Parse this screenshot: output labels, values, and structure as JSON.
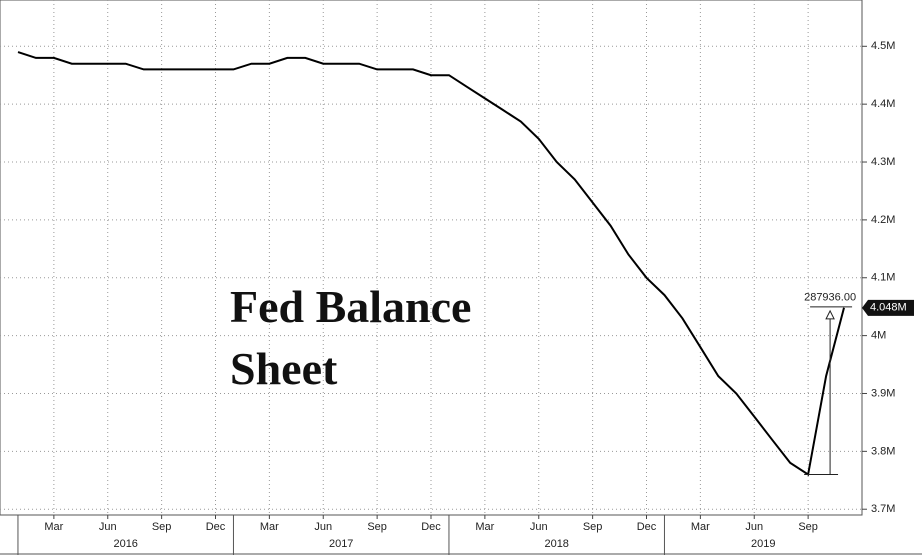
{
  "chart_data": {
    "type": "line",
    "title": "Fed Balance Sheet",
    "x": [
      "2016-01",
      "2016-02",
      "2016-03",
      "2016-04",
      "2016-05",
      "2016-06",
      "2016-07",
      "2016-08",
      "2016-09",
      "2016-10",
      "2016-11",
      "2016-12",
      "2017-01",
      "2017-02",
      "2017-03",
      "2017-04",
      "2017-05",
      "2017-06",
      "2017-07",
      "2017-08",
      "2017-09",
      "2017-10",
      "2017-11",
      "2017-12",
      "2018-01",
      "2018-02",
      "2018-03",
      "2018-04",
      "2018-05",
      "2018-06",
      "2018-07",
      "2018-08",
      "2018-09",
      "2018-10",
      "2018-11",
      "2018-12",
      "2019-01",
      "2019-02",
      "2019-03",
      "2019-04",
      "2019-05",
      "2019-06",
      "2019-07",
      "2019-08",
      "2019-09",
      "2019-10",
      "2019-11"
    ],
    "series": [
      {
        "name": "Fed Balance Sheet",
        "color": "#000000",
        "values": [
          4.49,
          4.48,
          4.48,
          4.47,
          4.47,
          4.47,
          4.47,
          4.46,
          4.46,
          4.46,
          4.46,
          4.46,
          4.46,
          4.47,
          4.47,
          4.48,
          4.48,
          4.47,
          4.47,
          4.47,
          4.46,
          4.46,
          4.46,
          4.45,
          4.45,
          4.43,
          4.41,
          4.39,
          4.37,
          4.34,
          4.3,
          4.27,
          4.23,
          4.19,
          4.14,
          4.1,
          4.07,
          4.03,
          3.98,
          3.93,
          3.9,
          3.86,
          3.82,
          3.78,
          3.76,
          3.93,
          4.048
        ]
      }
    ],
    "xlim": [
      "2015-12",
      "2019-12"
    ],
    "xticks": [
      {
        "value": "2016-03",
        "label": "Mar"
      },
      {
        "value": "2016-06",
        "label": "Jun"
      },
      {
        "value": "2016-09",
        "label": "Sep"
      },
      {
        "value": "2016-12",
        "label": "Dec"
      },
      {
        "value": "2017-03",
        "label": "Mar"
      },
      {
        "value": "2017-06",
        "label": "Jun"
      },
      {
        "value": "2017-09",
        "label": "Sep"
      },
      {
        "value": "2017-12",
        "label": "Dec"
      },
      {
        "value": "2018-03",
        "label": "Mar"
      },
      {
        "value": "2018-06",
        "label": "Jun"
      },
      {
        "value": "2018-09",
        "label": "Sep"
      },
      {
        "value": "2018-12",
        "label": "Dec"
      },
      {
        "value": "2019-03",
        "label": "Mar"
      },
      {
        "value": "2019-06",
        "label": "Jun"
      },
      {
        "value": "2019-09",
        "label": "Sep"
      }
    ],
    "years": [
      2016,
      2017,
      2018,
      2019
    ],
    "ylim": [
      3.69,
      4.58
    ],
    "yticks": [
      {
        "value": 3.7,
        "label": "3.7M"
      },
      {
        "value": 3.8,
        "label": "3.8M"
      },
      {
        "value": 3.9,
        "label": "3.9M"
      },
      {
        "value": 4,
        "label": "4M"
      },
      {
        "value": 4.1,
        "label": "4.1M"
      },
      {
        "value": 4.2,
        "label": "4.2M"
      },
      {
        "value": 4.3,
        "label": "4.3M"
      },
      {
        "value": 4.4,
        "label": "4.4M"
      },
      {
        "value": 4.5,
        "label": "4.5M"
      }
    ],
    "last_value": {
      "value": 4.048,
      "label": "4.048M"
    },
    "annotation": "287936.00",
    "grid": true
  }
}
